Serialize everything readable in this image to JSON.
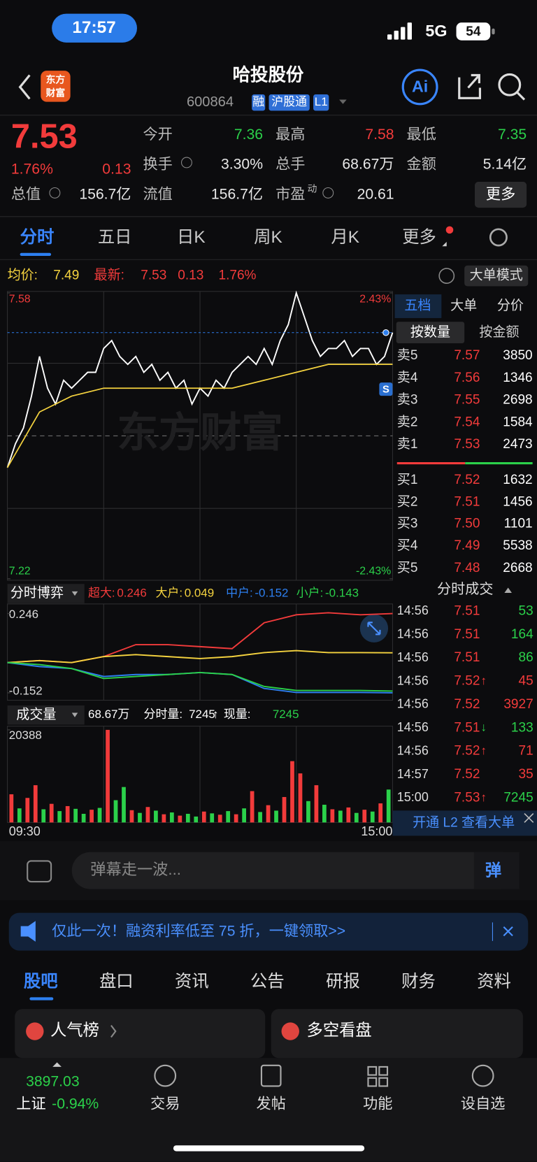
{
  "status": {
    "time": "17:57",
    "network": "5G",
    "battery": "54"
  },
  "header": {
    "logo": [
      "东方",
      "财富"
    ],
    "title": "哈投股份",
    "code": "600864",
    "tags": [
      "融",
      "沪股通",
      "L1"
    ],
    "ai": "Ai"
  },
  "quote": {
    "price": "7.53",
    "change_pct": "1.76%",
    "change": "0.13",
    "more": "更多",
    "rows": [
      [
        {
          "label": "今开",
          "value": "7.36",
          "color": "#2bd14a"
        },
        {
          "label": "最高",
          "value": "7.58",
          "color": "#f23b3b"
        },
        {
          "label": "最低",
          "value": "7.35",
          "color": "#2bd14a"
        }
      ],
      [
        {
          "label": "换手",
          "value": "3.30%"
        },
        {
          "label": "总手",
          "value": "68.67万"
        },
        {
          "label": "金额",
          "value": "5.14亿"
        }
      ],
      [
        {
          "label": "总值",
          "value": "156.7亿"
        },
        {
          "label": "流值",
          "value": "156.7亿"
        },
        {
          "label": "市盈",
          "sup": "动",
          "value": "20.61"
        }
      ]
    ]
  },
  "tabs": {
    "items": [
      "分时",
      "五日",
      "日K",
      "周K",
      "月K",
      "更多"
    ],
    "active": 0
  },
  "info": {
    "avg_label": "均价:",
    "avg": "7.49",
    "latest_label": "最新:",
    "latest": "7.53",
    "change": "0.13",
    "pct": "1.76%",
    "mode": "大单模式"
  },
  "chart_data": [
    {
      "type": "line",
      "watermark": "东方财富",
      "marker": "S",
      "ylim": [
        7.22,
        7.58
      ],
      "yticks": [
        7.58,
        7.22
      ],
      "y2lim": [
        -2.43,
        2.43
      ],
      "y2ticks": [
        {
          "value": 2.43,
          "label": "2.43%"
        },
        {
          "value": -2.43,
          "label": "-2.43%"
        }
      ],
      "series": [
        {
          "color": "#ffffff",
          "values": [
            7.36,
            7.39,
            7.41,
            7.45,
            7.5,
            7.46,
            7.44,
            7.47,
            7.46,
            7.47,
            7.48,
            7.48,
            7.51,
            7.52,
            7.5,
            7.49,
            7.5,
            7.48,
            7.49,
            7.47,
            7.48,
            7.46,
            7.47,
            7.44,
            7.46,
            7.45,
            7.47,
            7.46,
            7.48,
            7.49,
            7.5,
            7.49,
            7.51,
            7.49,
            7.52,
            7.54,
            7.58,
            7.55,
            7.52,
            7.5,
            7.51,
            7.51,
            7.52,
            7.5,
            7.51,
            7.51,
            7.49,
            7.5,
            7.53
          ]
        },
        {
          "color": "#f5d33f",
          "values": [
            7.36,
            7.43,
            7.45,
            7.46,
            7.46,
            7.46,
            7.46,
            7.46,
            7.47,
            7.48,
            7.49,
            7.49,
            7.49
          ]
        }
      ]
    },
    {
      "type": "line",
      "title": "分时博弈",
      "ylim": [
        -0.152,
        0.246
      ],
      "yticks": [
        0.246,
        -0.152
      ],
      "series": [
        {
          "name": "超大:",
          "color": "#f23b3b",
          "values": [
            0,
            0.01,
            0.0,
            0.03,
            0.09,
            0.09,
            0.08,
            0.07,
            0.2,
            0.24,
            0.25,
            0.24,
            0.246
          ]
        },
        {
          "name": "大户:",
          "color": "#f5d33f",
          "values": [
            0,
            0.01,
            0.0,
            0.03,
            0.04,
            0.03,
            0.02,
            0.03,
            0.05,
            0.06,
            0.05,
            0.05,
            0.049
          ]
        },
        {
          "name": "中户:",
          "color": "#2d7ff0",
          "values": [
            0,
            -0.02,
            -0.03,
            -0.07,
            -0.06,
            -0.06,
            -0.05,
            -0.06,
            -0.13,
            -0.15,
            -0.15,
            -0.15,
            -0.152
          ]
        },
        {
          "name": "小户:",
          "color": "#2bd14a",
          "values": [
            0,
            -0.01,
            -0.03,
            -0.08,
            -0.07,
            -0.06,
            -0.05,
            -0.06,
            -0.12,
            -0.14,
            -0.14,
            -0.14,
            -0.143
          ]
        }
      ]
    },
    {
      "type": "bar",
      "title": "成交量",
      "summary": [
        "68.67万",
        "分时量:",
        "7245",
        "↑",
        "现量:",
        "7245"
      ],
      "ylim": [
        0,
        20388
      ],
      "yticks": [
        20388
      ],
      "xticks": [
        "09:30",
        "15:00"
      ],
      "values": [
        6200,
        3100,
        5400,
        8200,
        2900,
        4100,
        2500,
        3600,
        3000,
        1900,
        2800,
        3200,
        20388,
        4900,
        7800,
        2700,
        2100,
        3400,
        2600,
        1800,
        2200,
        1500,
        1900,
        1300,
        2400,
        2000,
        1700,
        2500,
        1800,
        3100,
        6900,
        2300,
        3800,
        2600,
        5600,
        13500,
        10800,
        4700,
        8200,
        3900,
        2900,
        2600,
        3300,
        2100,
        2800,
        2400,
        4200,
        7245
      ],
      "colors": [
        "#f23b3b",
        "#2bd14a",
        "#f23b3b",
        "#f23b3b",
        "#2bd14a",
        "#f23b3b",
        "#2bd14a",
        "#f23b3b",
        "#2bd14a",
        "#2bd14a",
        "#f23b3b",
        "#2bd14a",
        "#f23b3b",
        "#2bd14a",
        "#2bd14a",
        "#f23b3b",
        "#2bd14a",
        "#f23b3b",
        "#2bd14a",
        "#f23b3b",
        "#2bd14a",
        "#f23b3b",
        "#2bd14a",
        "#2bd14a",
        "#f23b3b",
        "#2bd14a",
        "#f23b3b",
        "#2bd14a",
        "#f23b3b",
        "#2bd14a",
        "#f23b3b",
        "#2bd14a",
        "#f23b3b",
        "#2bd14a",
        "#f23b3b",
        "#f23b3b",
        "#f23b3b",
        "#2bd14a",
        "#f23b3b",
        "#2bd14a",
        "#f23b3b",
        "#2bd14a",
        "#f23b3b",
        "#2bd14a",
        "#f23b3b",
        "#2bd14a",
        "#f23b3b",
        "#2bd14a"
      ]
    }
  ],
  "book": {
    "tabs": [
      "五档",
      "大单",
      "分价"
    ],
    "subtabs": [
      "按数量",
      "按金额"
    ],
    "asks": [
      {
        "label": "卖5",
        "price": "7.57",
        "vol": "3850"
      },
      {
        "label": "卖4",
        "price": "7.56",
        "vol": "1346"
      },
      {
        "label": "卖3",
        "price": "7.55",
        "vol": "2698"
      },
      {
        "label": "卖2",
        "price": "7.54",
        "vol": "1584"
      },
      {
        "label": "卖1",
        "price": "7.53",
        "vol": "2473"
      }
    ],
    "bids": [
      {
        "label": "买1",
        "price": "7.52",
        "vol": "1632"
      },
      {
        "label": "买2",
        "price": "7.51",
        "vol": "1456"
      },
      {
        "label": "买3",
        "price": "7.50",
        "vol": "1101"
      },
      {
        "label": "买4",
        "price": "7.49",
        "vol": "5538"
      },
      {
        "label": "买5",
        "price": "7.48",
        "vol": "2668"
      }
    ]
  },
  "trades": {
    "title": "分时成交",
    "rows": [
      {
        "time": "14:56",
        "price": "7.51",
        "vol": "53",
        "side": "sell"
      },
      {
        "time": "14:56",
        "price": "7.51",
        "vol": "164",
        "side": "sell"
      },
      {
        "time": "14:56",
        "price": "7.51",
        "vol": "86",
        "side": "sell"
      },
      {
        "time": "14:56",
        "price": "7.52",
        "arrow": "↑",
        "vol": "45",
        "side": "buy"
      },
      {
        "time": "14:56",
        "price": "7.52",
        "vol": "3927",
        "side": "buy"
      },
      {
        "time": "14:56",
        "price": "7.51",
        "arrow": "↓",
        "vol": "133",
        "side": "sell"
      },
      {
        "time": "14:56",
        "price": "7.52",
        "arrow": "↑",
        "vol": "71",
        "side": "buy"
      },
      {
        "time": "14:57",
        "price": "7.52",
        "vol": "35",
        "side": "buy"
      },
      {
        "time": "15:00",
        "price": "7.53",
        "arrow": "↑",
        "vol": "7245",
        "side": "sell"
      }
    ],
    "l2": "开通 L2 查看大单"
  },
  "comment": {
    "placeholder": "弹幕走一波...",
    "button": "弹"
  },
  "banner": "仅此一次！融资利率低至 75 折，一键领取>>",
  "sections": {
    "items": [
      "股吧",
      "盘口",
      "资讯",
      "公告",
      "研报",
      "财务",
      "资料"
    ],
    "active": 0
  },
  "cards": [
    "人气榜",
    "多空看盘"
  ],
  "nav": {
    "index_value": "3897.03",
    "index_name": "上证",
    "index_pct": "-0.94%",
    "items": [
      "交易",
      "发帖",
      "功能",
      "设自选"
    ]
  }
}
